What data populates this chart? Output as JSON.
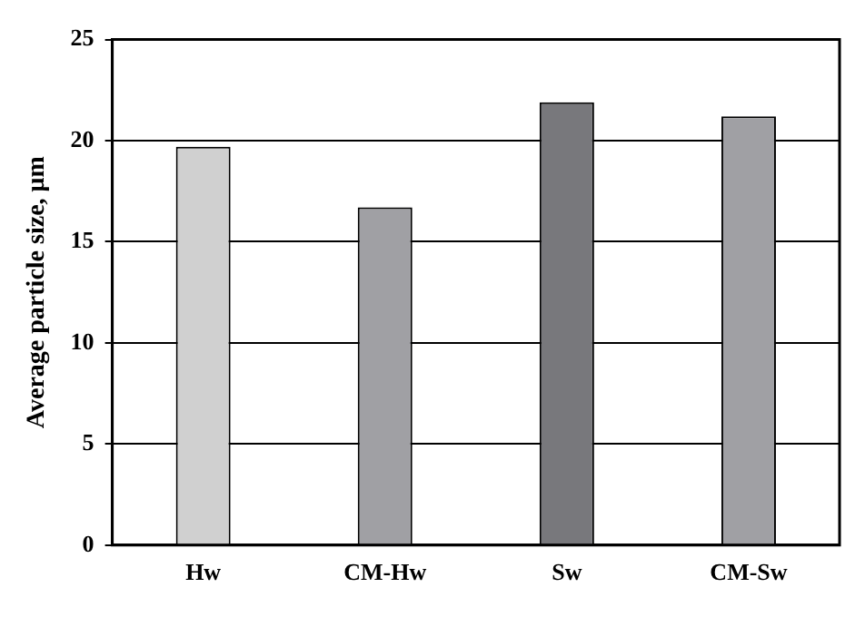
{
  "chart_data": {
    "type": "bar",
    "ylabel": "Average particle size, μm",
    "categories": [
      "Hw",
      "CM-Hw",
      "Sw",
      "CM-Sw"
    ],
    "values": [
      19.7,
      16.7,
      21.9,
      21.2
    ],
    "colors": [
      "#d0d0d0",
      "#a0a0a4",
      "#78787c",
      "#a0a0a4"
    ],
    "ylim": [
      0,
      25
    ],
    "yticks": [
      0,
      5,
      10,
      15,
      20,
      25
    ],
    "grid": "y"
  }
}
